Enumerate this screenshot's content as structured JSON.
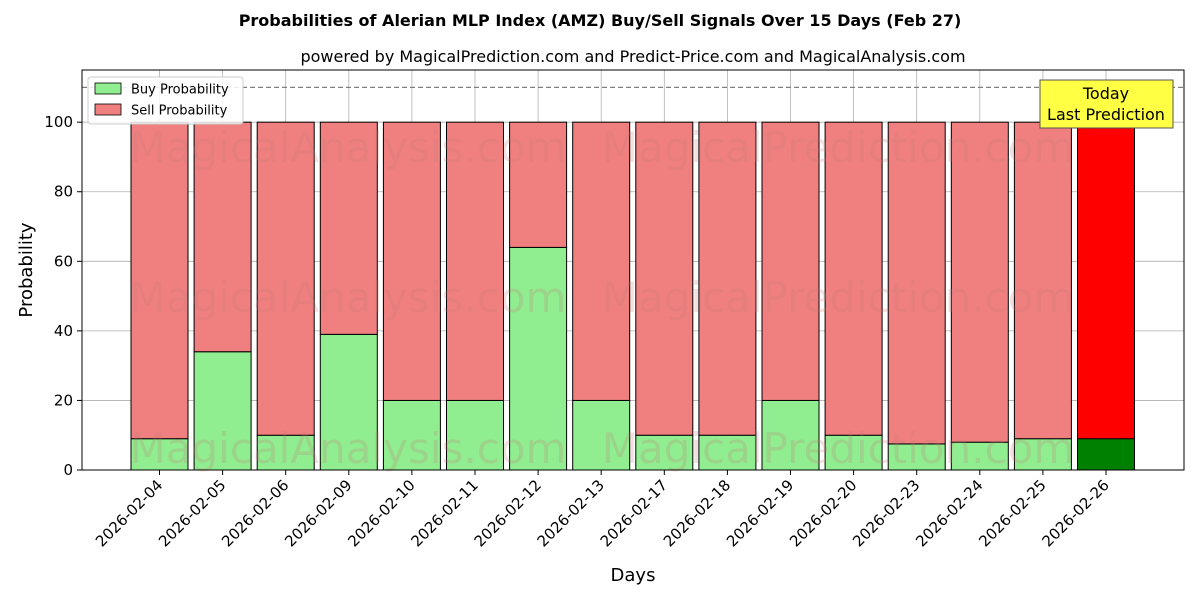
{
  "chart_data": {
    "type": "bar",
    "stacked": true,
    "title": "Probabilities of Alerian MLP Index (AMZ) Buy/Sell Signals Over 15 Days (Feb 27)",
    "subtitle": "powered by MagicalPrediction.com and Predict-Price.com and MagicalAnalysis.com",
    "xlabel": "Days",
    "ylabel": "Probability",
    "ylim": [
      0,
      115
    ],
    "yticks": [
      0,
      20,
      40,
      60,
      80,
      100
    ],
    "reference_line": 110,
    "grid": true,
    "legend_position": "top-left",
    "categories": [
      "2026-02-04",
      "2026-02-05",
      "2026-02-06",
      "2026-02-09",
      "2026-02-10",
      "2026-02-11",
      "2026-02-12",
      "2026-02-13",
      "2026-02-17",
      "2026-02-18",
      "2026-02-19",
      "2026-02-20",
      "2026-02-23",
      "2026-02-24",
      "2026-02-25",
      "2026-02-26"
    ],
    "series": [
      {
        "name": "Buy Probability",
        "color": "#90ee90",
        "values": [
          9,
          34,
          10,
          39,
          20,
          20,
          64,
          20,
          10,
          10,
          20,
          10,
          7.5,
          8,
          9,
          9
        ]
      },
      {
        "name": "Sell Probability",
        "color": "#f08080",
        "values": [
          91,
          66,
          90,
          61,
          80,
          80,
          36,
          80,
          90,
          90,
          80,
          90,
          92.5,
          92,
          91,
          91
        ]
      }
    ],
    "highlight": {
      "index": 15,
      "buy_color": "#008000",
      "sell_color": "#ff0000"
    },
    "annotation": {
      "line1": "Today",
      "line2": "Last Prediction",
      "bg_color": "#ffff44"
    },
    "watermarks": [
      "MagicalAnalysis.com",
      "MagicalPrediction.com"
    ]
  }
}
